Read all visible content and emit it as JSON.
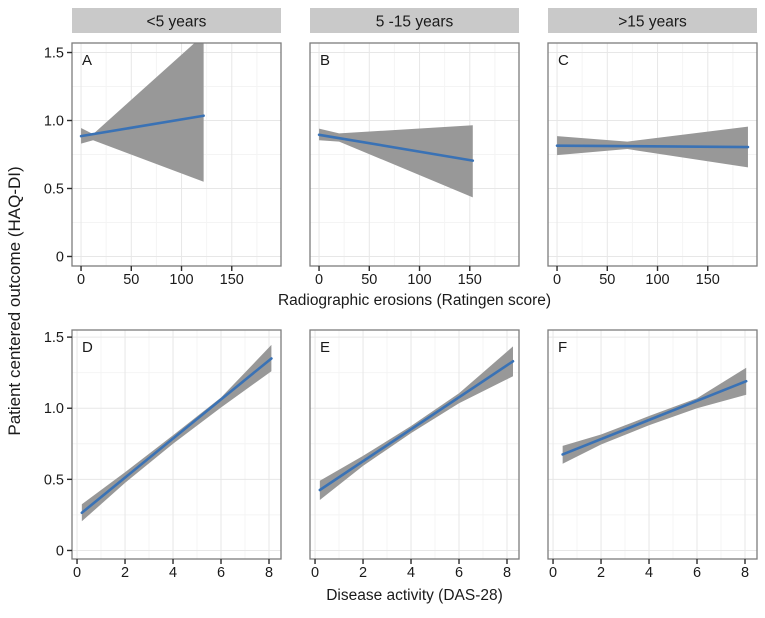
{
  "figure": {
    "ylabel": "Patient centered outcome (HAQ-DI)",
    "colors": {
      "line": "#3a72b5",
      "band": "#989898",
      "strip_bg": "#c9c9c9",
      "panel_border": "#7d7d7d",
      "grid_major": "#e7e7e7",
      "grid_minor": "#f4f4f4",
      "tick": "#2b2b2b",
      "text": "#1a1a1a",
      "panel_bg": "#ffffff"
    }
  },
  "chart_data": [
    {
      "type": "line",
      "row": "top",
      "xlabel": "Radiographic erosions (Ratingen score)",
      "ylabel": "Patient centered outcome (HAQ-DI)",
      "xlim": [
        -9,
        199
      ],
      "ylim": [
        -0.07,
        1.57
      ],
      "x_ticks": [
        0,
        50,
        100,
        150
      ],
      "x_tick_labels": [
        "0",
        "50",
        "100",
        "150"
      ],
      "x_minor": [
        25,
        75,
        125,
        175
      ],
      "y_ticks": [
        0,
        0.5,
        1.0,
        1.5
      ],
      "y_tick_labels": [
        "0",
        "0.5",
        "1.0",
        "1.5"
      ],
      "y_minor": [
        0.25,
        0.75,
        1.25
      ],
      "grid": true,
      "legend": "none",
      "panels": [
        {
          "label": "A",
          "strip": "<5 years",
          "line": {
            "x": [
              0,
              122
            ],
            "y": [
              0.885,
              1.035
            ]
          },
          "band": {
            "x": [
              0,
              12,
              122
            ],
            "lower": [
              0.83,
              0.855,
              0.55
            ],
            "upper": [
              0.945,
              0.9,
              1.63
            ]
          }
        },
        {
          "label": "B",
          "strip": "5 -15 years",
          "line": {
            "x": [
              0,
              153
            ],
            "y": [
              0.895,
              0.705
            ]
          },
          "band": {
            "x": [
              0,
              20,
              153
            ],
            "lower": [
              0.855,
              0.845,
              0.435
            ],
            "upper": [
              0.94,
              0.905,
              0.965
            ]
          }
        },
        {
          "label": "C",
          "strip": ">15 years",
          "line": {
            "x": [
              0,
              190
            ],
            "y": [
              0.815,
              0.805
            ]
          },
          "band": {
            "x": [
              0,
              70,
              190
            ],
            "lower": [
              0.745,
              0.79,
              0.655
            ],
            "upper": [
              0.885,
              0.845,
              0.955
            ]
          }
        }
      ]
    },
    {
      "type": "line",
      "row": "bottom",
      "xlabel": "Disease activity (DAS-28)",
      "ylabel": "Patient centered outcome (HAQ-DI)",
      "xlim": [
        -0.21,
        8.5
      ],
      "ylim": [
        -0.06,
        1.55
      ],
      "x_ticks": [
        0,
        2,
        4,
        6,
        8
      ],
      "x_tick_labels": [
        "0",
        "2",
        "4",
        "6",
        "8"
      ],
      "x_minor": [
        1,
        3,
        5,
        7
      ],
      "y_ticks": [
        0,
        0.5,
        1.0,
        1.5
      ],
      "y_tick_labels": [
        "0",
        "0.5",
        "1.0",
        "1.5"
      ],
      "y_minor": [
        0.25,
        0.75,
        1.25
      ],
      "grid": true,
      "legend": "none",
      "panels": [
        {
          "label": "D",
          "strip": "",
          "line": {
            "x": [
              0.2,
              8.1
            ],
            "y": [
              0.265,
              1.35
            ]
          },
          "band": {
            "x": [
              0.2,
              2,
              4,
              6,
              8.1
            ],
            "lower": [
              0.205,
              0.475,
              0.75,
              1.005,
              1.26
            ],
            "upper": [
              0.325,
              0.55,
              0.81,
              1.075,
              1.445
            ]
          }
        },
        {
          "label": "E",
          "strip": "",
          "line": {
            "x": [
              0.2,
              8.25
            ],
            "y": [
              0.425,
              1.33
            ]
          },
          "band": {
            "x": [
              0.2,
              2,
              4,
              6,
              8.25
            ],
            "lower": [
              0.355,
              0.595,
              0.825,
              1.035,
              1.225
            ],
            "upper": [
              0.49,
              0.665,
              0.875,
              1.105,
              1.435
            ]
          }
        },
        {
          "label": "F",
          "strip": "",
          "line": {
            "x": [
              0.4,
              8.05
            ],
            "y": [
              0.675,
              1.19
            ]
          },
          "band": {
            "x": [
              0.4,
              2,
              4,
              6,
              8.05
            ],
            "lower": [
              0.61,
              0.745,
              0.88,
              1.0,
              1.095
            ],
            "upper": [
              0.735,
              0.815,
              0.945,
              1.07,
              1.285
            ]
          }
        }
      ]
    }
  ]
}
